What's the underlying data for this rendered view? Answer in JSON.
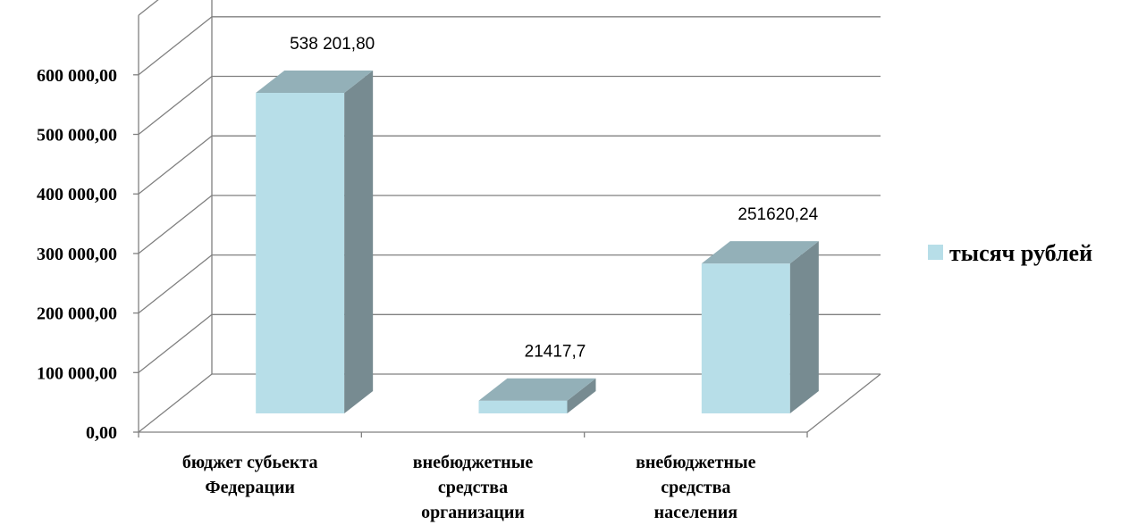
{
  "chart_data": {
    "type": "bar",
    "categories": [
      [
        "бюджет субьекта",
        "Федерации"
      ],
      [
        "внебюджетные",
        "средства",
        "организации"
      ],
      [
        "внебюджетные",
        "средства",
        "населения"
      ]
    ],
    "series": [
      {
        "name": "тысяч рублей",
        "values": [
          538201.8,
          21417.7,
          251620.24
        ]
      }
    ],
    "data_labels": [
      "538 201,80",
      "21417,7",
      "251620,24"
    ],
    "y_ticks": [
      "0,00",
      "100 000,00",
      "200 000,00",
      "300 000,00",
      "400 000,00",
      "500 000,00",
      "600 000,00"
    ],
    "ylim": [
      0,
      700000
    ],
    "grid": true,
    "legend_position": "right",
    "colors": {
      "bar_front": "#b7dee8",
      "bar_top": "#93b0b8",
      "bar_side": "#778b91",
      "grid": "#808080"
    }
  }
}
